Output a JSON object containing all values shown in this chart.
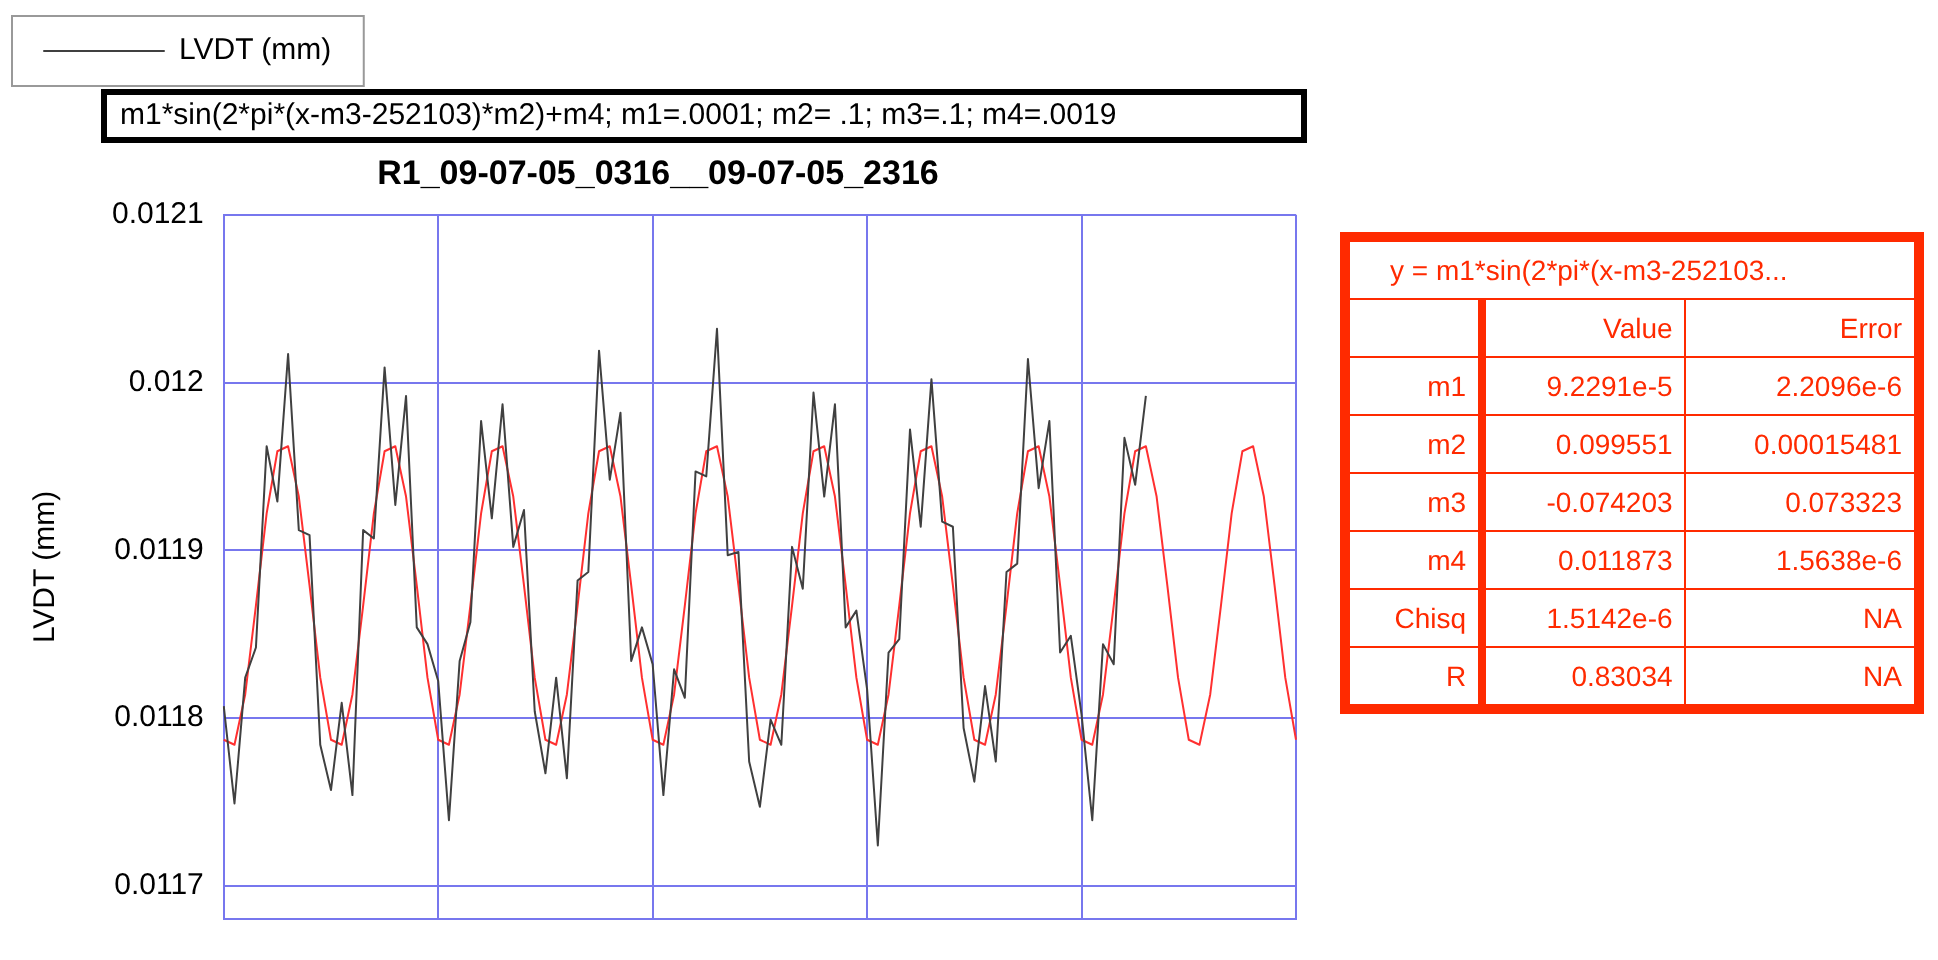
{
  "chart_data": [
    {
      "type": "line",
      "title": "R1_09-07-05_0316__09-07-05_2316",
      "ylabel": "LVDT (mm)",
      "annotations": [
        "m1*sin(2*pi*(x-m3-252103)*m2)+m4; m1=.0001; m2= .1; m3=.1; m4=.0019"
      ],
      "categories": [
        null,
        null,
        null,
        null,
        null,
        null,
        null,
        null,
        null,
        null,
        null,
        null,
        null,
        null,
        null,
        null,
        null,
        null,
        null,
        null,
        null,
        null,
        null,
        null,
        null,
        null,
        null,
        null,
        null,
        null,
        null,
        null,
        null,
        null,
        null,
        null,
        null,
        null,
        null,
        null,
        null,
        null,
        null,
        null,
        null,
        null,
        null,
        null,
        null,
        null,
        null,
        null,
        null,
        null,
        null,
        null,
        null,
        null,
        null,
        null,
        null,
        null,
        null,
        null,
        null,
        null,
        null,
        null,
        null,
        null,
        null,
        null,
        null,
        null,
        null,
        null,
        null,
        null,
        null,
        null,
        null,
        null,
        null,
        null,
        null,
        null,
        null,
        null,
        null,
        null,
        null,
        null,
        null,
        null,
        null,
        null,
        null,
        null,
        null,
        null,
        null
      ],
      "ylim": [
        0.01168,
        0.0121
      ],
      "yticks": [
        0.0117,
        0.0118,
        0.0119,
        0.012,
        0.0121
      ],
      "grid": true,
      "legend": "top left",
      "series": [
        {
          "name": "LVDT (mm)",
          "color": "#404040",
          "values": [
            0.011807,
            0.011749,
            0.011824,
            0.011842,
            0.011962,
            0.011929,
            0.012017,
            0.011912,
            0.011909,
            0.011784,
            0.011757,
            0.011809,
            0.011754,
            0.011912,
            0.011907,
            0.012009,
            0.011927,
            0.011992,
            0.011854,
            0.011844,
            0.011822,
            0.011739,
            0.011834,
            0.011857,
            0.011977,
            0.011919,
            0.011987,
            0.011902,
            0.011924,
            0.011804,
            0.011767,
            0.011824,
            0.011764,
            0.011882,
            0.011887,
            0.012019,
            0.011942,
            0.011982,
            0.011834,
            0.011854,
            0.011832,
            0.011754,
            0.011829,
            0.011812,
            0.011947,
            0.011944,
            0.012032,
            0.011897,
            0.011899,
            0.011774,
            0.011747,
            0.011799,
            0.011784,
            0.011902,
            0.011877,
            0.011994,
            0.011932,
            0.011987,
            0.011854,
            0.011864,
            0.011817,
            0.011724,
            0.011839,
            0.011847,
            0.011972,
            0.011914,
            0.012002,
            0.011917,
            0.011914,
            0.011794,
            0.011762,
            0.011819,
            0.011774,
            0.011887,
            0.011892,
            0.012014,
            0.011937,
            0.011977,
            0.011839,
            0.011849,
            0.011802,
            0.011739,
            0.011844,
            0.011832,
            0.011967,
            0.011939,
            0.011992,
            null,
            null,
            null,
            null,
            null,
            null,
            null,
            null,
            null,
            null,
            null,
            null,
            null,
            null
          ]
        },
        {
          "type": "line",
          "color": "#ff3030",
          "values": [
            0.011787,
            0.011784,
            0.011814,
            0.011867,
            0.011922,
            0.011959,
            0.011962,
            0.011932,
            0.011879,
            0.011824,
            0.011787,
            0.011784,
            0.011814,
            0.011867,
            0.011922,
            0.011959,
            0.011962,
            0.011932,
            0.011879,
            0.011824,
            0.011787,
            0.011784,
            0.011814,
            0.011867,
            0.011922,
            0.011959,
            0.011962,
            0.011932,
            0.011879,
            0.011824,
            0.011787,
            0.011784,
            0.011814,
            0.011867,
            0.011922,
            0.011959,
            0.011962,
            0.011932,
            0.011879,
            0.011824,
            0.011787,
            0.011784,
            0.011814,
            0.011867,
            0.011922,
            0.011959,
            0.011962,
            0.011932,
            0.011879,
            0.011824,
            0.011787,
            0.011784,
            0.011814,
            0.011867,
            0.011922,
            0.011959,
            0.011962,
            0.011932,
            0.011879,
            0.011824,
            0.011787,
            0.011784,
            0.011814,
            0.011867,
            0.011922,
            0.011959,
            0.011962,
            0.011932,
            0.011879,
            0.011824,
            0.011787,
            0.011784,
            0.011814,
            0.011867,
            0.011922,
            0.011959,
            0.011962,
            0.011932,
            0.011879,
            0.011824,
            0.011787,
            0.011784,
            0.011814,
            0.011867,
            0.011922,
            0.011959,
            0.011962,
            0.011932,
            0.011879,
            0.011824,
            0.011787,
            0.011784,
            0.011814,
            0.011867,
            0.011922,
            0.011959,
            0.011962,
            0.011932,
            0.011879,
            0.011824,
            0.011787
          ]
        }
      ]
    },
    {
      "type": "other",
      "title": "y = m1*sin(2*pi*(x-m3-252103...",
      "color": "#ff2a00",
      "categories": [
        "Value",
        "Error"
      ],
      "y_categories": [
        "m1",
        "m2",
        "m3",
        "m4",
        "Chisq",
        "R"
      ],
      "cell_labels": [
        [
          "9.2291e-5",
          "2.2096e-6"
        ],
        [
          "0.099551",
          "0.00015481"
        ],
        [
          "-0.074203",
          "0.073323"
        ],
        [
          "0.011873",
          "1.5638e-6"
        ],
        [
          "1.5142e-6",
          "NA"
        ],
        [
          "0.83034",
          "NA"
        ]
      ]
    }
  ]
}
